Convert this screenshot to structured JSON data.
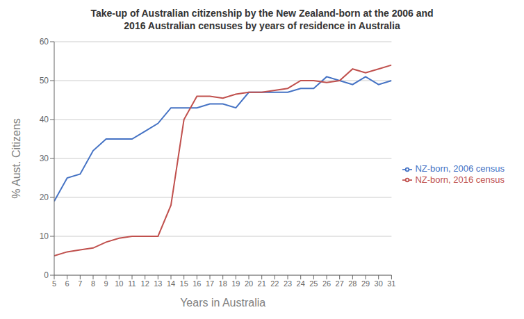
{
  "chart_data": {
    "type": "line",
    "title": "Take-up of Australian citizenship by the New Zealand-born at the 2006 and\n2016 Australian censuses by years of residence in Australia",
    "xlabel": "Years in Australia",
    "ylabel": "% Aust. Citizens",
    "x": [
      5,
      6,
      7,
      8,
      9,
      10,
      11,
      12,
      13,
      14,
      15,
      16,
      17,
      18,
      19,
      20,
      21,
      22,
      23,
      24,
      25,
      26,
      27,
      28,
      29,
      30,
      31
    ],
    "series": [
      {
        "name": "NZ-born, 2006 census",
        "color": "#4472C4",
        "values": [
          19,
          25,
          26,
          32,
          35,
          35,
          35,
          37,
          39,
          43,
          43,
          43,
          44,
          44,
          43,
          47,
          47,
          47,
          47,
          48,
          48,
          51,
          50,
          49,
          51,
          49,
          50
        ]
      },
      {
        "name": "NZ-born, 2016 census",
        "color": "#C0504D",
        "values": [
          5,
          6,
          6.5,
          7,
          8.5,
          9.5,
          10,
          10,
          10,
          18,
          40,
          46,
          46,
          45.5,
          46.5,
          47,
          47,
          47.5,
          48,
          50,
          50,
          49.5,
          50,
          53,
          52,
          53,
          54
        ]
      }
    ],
    "xlim": [
      5,
      31
    ],
    "ylim": [
      0,
      60
    ],
    "xticks": [
      5,
      6,
      7,
      8,
      9,
      10,
      11,
      12,
      13,
      14,
      15,
      16,
      17,
      18,
      19,
      20,
      21,
      22,
      23,
      24,
      25,
      26,
      27,
      28,
      29,
      30,
      31
    ],
    "yticks": [
      0,
      10,
      20,
      30,
      40,
      50,
      60
    ],
    "grid": true,
    "legend": "right"
  }
}
